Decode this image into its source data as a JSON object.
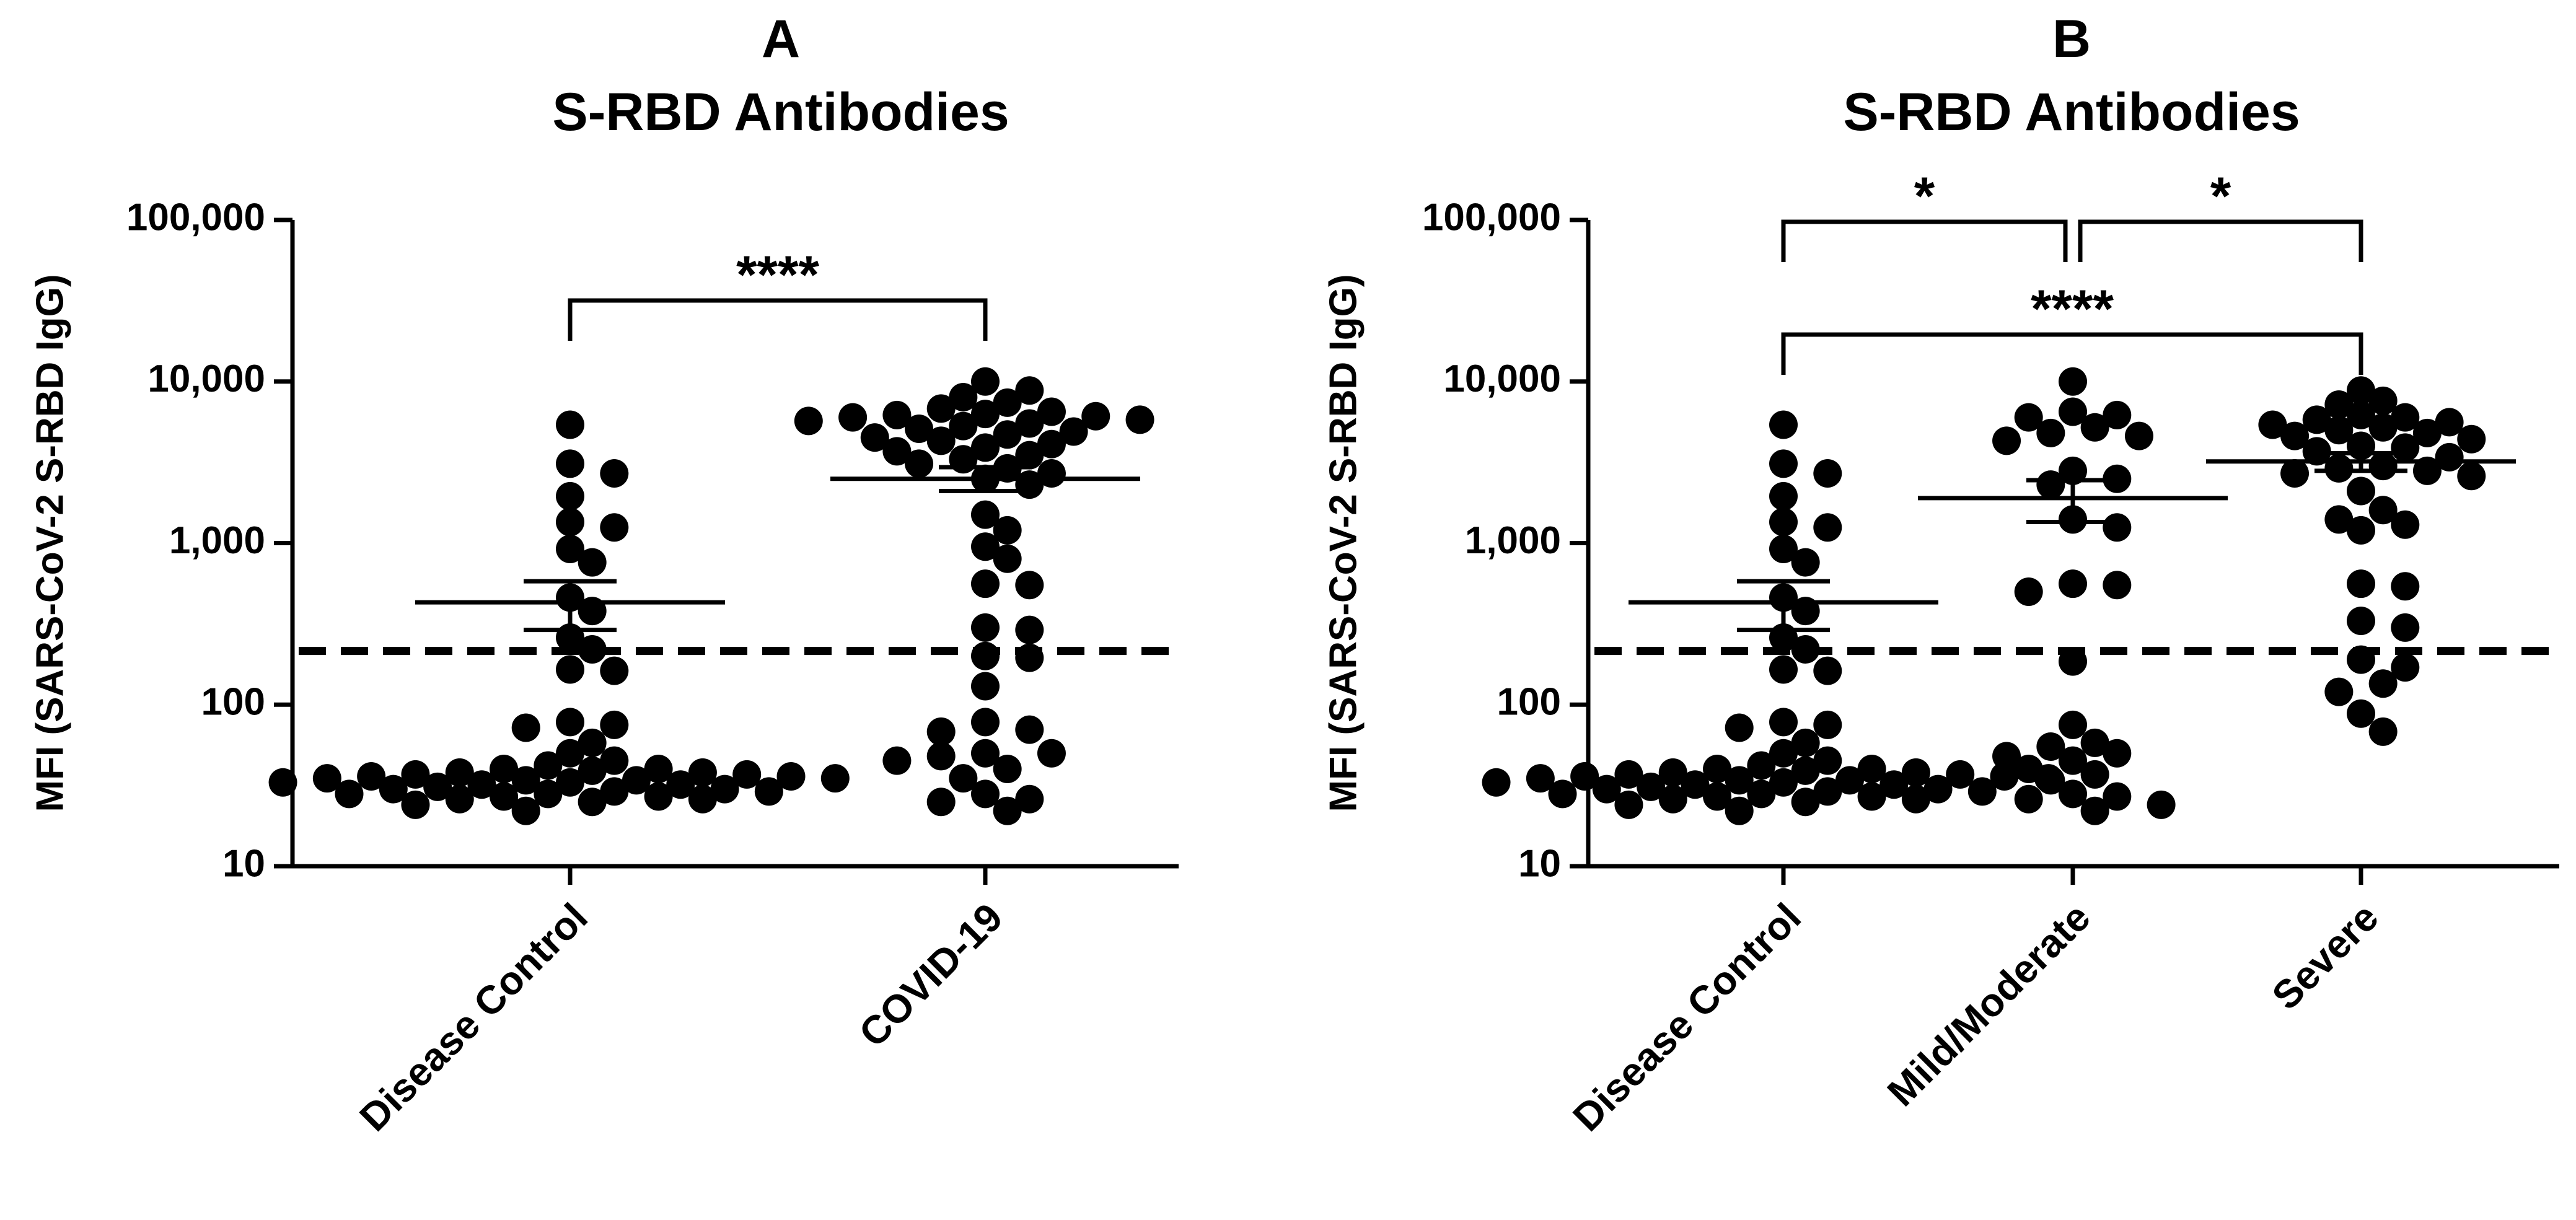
{
  "colors": {
    "ink": "#000000",
    "background": "#ffffff"
  },
  "chart_data": [
    {
      "type": "scatter",
      "panel_letter": "A",
      "title": "S-RBD Antibodies",
      "ylabel": "MFI (SARS-CoV-2 S-RBD IgG)",
      "yscale": "log",
      "ylim": [
        10,
        100000
      ],
      "yticks": [
        {
          "value": 10,
          "label": "10"
        },
        {
          "value": 100,
          "label": "100"
        },
        {
          "value": 1000,
          "label": "1,000"
        },
        {
          "value": 10000,
          "label": "10,000"
        },
        {
          "value": 100000,
          "label": "100,000"
        }
      ],
      "threshold": 215,
      "categories": [
        "Disease Control",
        "COVID-19"
      ],
      "groups": [
        {
          "mean": 430,
          "sem_low": 290,
          "sem_high": 580,
          "points": [
            5400,
            3100,
            2700,
            1950,
            1350,
            1250,
            920,
            760,
            460,
            380,
            260,
            220,
            165,
            162,
            78,
            75,
            72,
            58,
            50,
            45,
            42,
            40,
            40,
            39,
            38,
            38,
            37,
            37,
            36,
            36,
            35,
            35,
            34,
            34,
            33,
            33,
            32,
            32,
            31,
            30,
            30,
            29,
            29,
            28,
            28,
            27,
            27,
            26,
            26,
            25,
            24,
            22
          ]
        },
        {
          "mean": 2500,
          "sem_low": 2100,
          "sem_high": 2950,
          "points": [
            10000,
            8800,
            8000,
            7400,
            6800,
            6500,
            6300,
            6200,
            6100,
            6000,
            5800,
            5700,
            5500,
            5300,
            5100,
            4900,
            4700,
            4500,
            4300,
            4100,
            3900,
            3700,
            3500,
            3300,
            3100,
            2900,
            2700,
            2500,
            2300,
            1500,
            1200,
            950,
            800,
            560,
            550,
            300,
            290,
            200,
            195,
            130,
            78,
            70,
            68,
            50,
            50,
            48,
            45,
            40,
            35,
            28,
            26,
            25,
            22
          ]
        }
      ],
      "comparisons": [
        {
          "from": 0,
          "to": 1,
          "label": "****"
        }
      ]
    },
    {
      "type": "scatter",
      "panel_letter": "B",
      "title": "S-RBD Antibodies",
      "ylabel": "MFI (SARS-CoV-2 S-RBD IgG)",
      "yscale": "log",
      "ylim": [
        10,
        100000
      ],
      "yticks": [
        {
          "value": 10,
          "label": "10"
        },
        {
          "value": 100,
          "label": "100"
        },
        {
          "value": 1000,
          "label": "1,000"
        },
        {
          "value": 10000,
          "label": "10,000"
        },
        {
          "value": 100000,
          "label": "100,000"
        }
      ],
      "threshold": 215,
      "categories": [
        "Disease Control",
        "Mild/Moderate",
        "Severe"
      ],
      "groups": [
        {
          "mean": 430,
          "sem_low": 290,
          "sem_high": 580,
          "points": [
            5400,
            3100,
            2700,
            1950,
            1350,
            1250,
            920,
            760,
            460,
            380,
            260,
            220,
            165,
            162,
            78,
            75,
            72,
            58,
            50,
            45,
            42,
            40,
            40,
            39,
            38,
            38,
            37,
            37,
            36,
            36,
            35,
            35,
            34,
            34,
            33,
            33,
            32,
            32,
            31,
            30,
            30,
            29,
            29,
            28,
            28,
            27,
            27,
            26,
            26,
            25,
            24,
            22
          ]
        },
        {
          "mean": 1900,
          "sem_low": 1350,
          "sem_high": 2450,
          "points": [
            10000,
            6500,
            6200,
            6000,
            5200,
            4800,
            4600,
            4300,
            2800,
            2500,
            2300,
            1400,
            1250,
            560,
            550,
            500,
            185,
            75,
            58,
            55,
            50,
            48,
            45,
            40,
            37,
            34,
            28,
            27,
            26,
            24,
            22
          ]
        },
        {
          "mean": 3200,
          "sem_low": 2800,
          "sem_high": 3600,
          "points": [
            8800,
            7600,
            7200,
            6200,
            6000,
            5800,
            5600,
            5400,
            5200,
            5000,
            4800,
            4600,
            4400,
            4000,
            3900,
            3700,
            3400,
            3000,
            2900,
            2800,
            2700,
            2600,
            2100,
            1600,
            1400,
            1300,
            1200,
            560,
            540,
            330,
            300,
            190,
            170,
            135,
            120,
            88,
            68
          ]
        }
      ],
      "comparisons": [
        {
          "from": 0,
          "to": 1,
          "label": "*",
          "level": 2
        },
        {
          "from": 1,
          "to": 2,
          "label": "*",
          "level": 2
        },
        {
          "from": 0,
          "to": 2,
          "label": "****",
          "level": 1
        }
      ]
    }
  ]
}
